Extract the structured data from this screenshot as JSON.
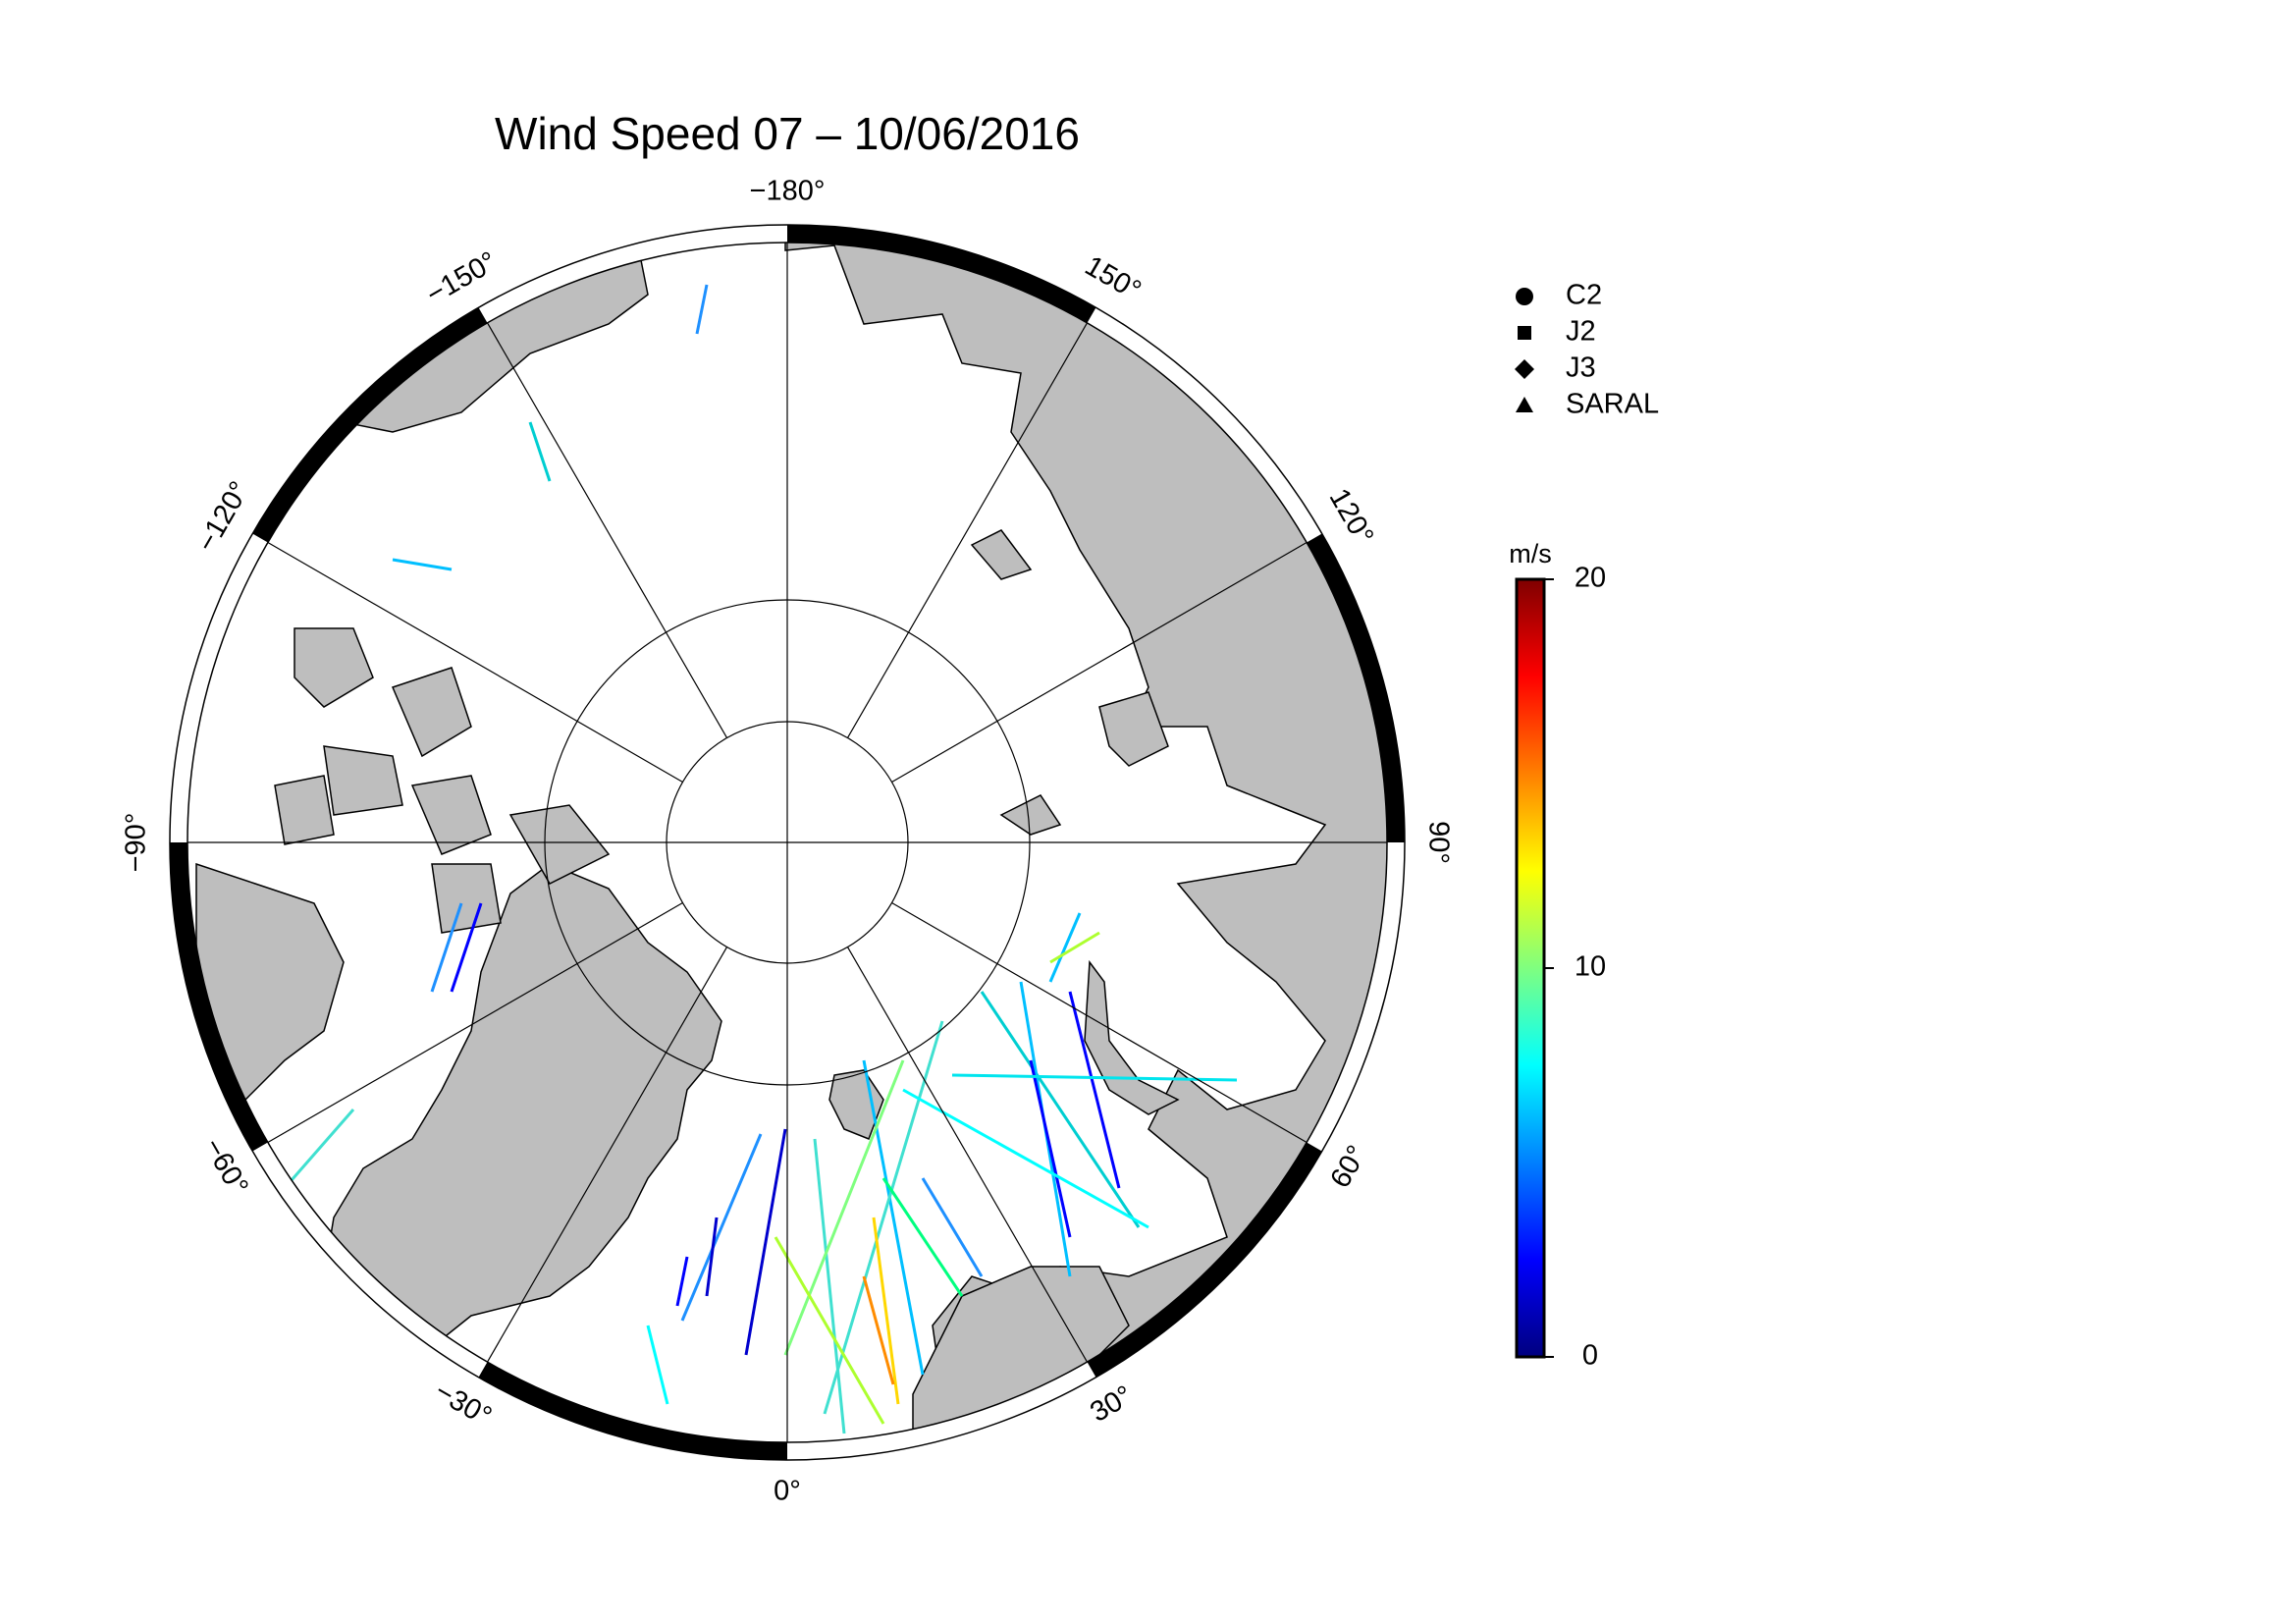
{
  "map": {
    "title": "Wind Speed 07 – 10/06/2016",
    "longitude_labels": [
      {
        "value": -180,
        "label": "−180°"
      },
      {
        "value": 150,
        "label": "150°"
      },
      {
        "value": 120,
        "label": "120°"
      },
      {
        "value": 90,
        "label": "90°"
      },
      {
        "value": 60,
        "label": "60°"
      },
      {
        "value": 30,
        "label": "30°"
      },
      {
        "value": 0,
        "label": "0°"
      },
      {
        "value": -30,
        "label": "−30°"
      },
      {
        "value": -60,
        "label": "−60°"
      },
      {
        "value": -90,
        "label": "−90°"
      },
      {
        "value": -120,
        "label": "−120°"
      },
      {
        "value": -150,
        "label": "−150°"
      }
    ],
    "legend": [
      {
        "name": "C2",
        "marker": "circle"
      },
      {
        "name": "J2",
        "marker": "square"
      },
      {
        "name": "J3",
        "marker": "diamond"
      },
      {
        "name": "SARAL",
        "marker": "triangle"
      }
    ],
    "colorbar": {
      "label": "m/s",
      "range": [
        0,
        20
      ],
      "ticks": [
        0,
        10,
        20
      ],
      "colormap": "jet"
    }
  }
}
